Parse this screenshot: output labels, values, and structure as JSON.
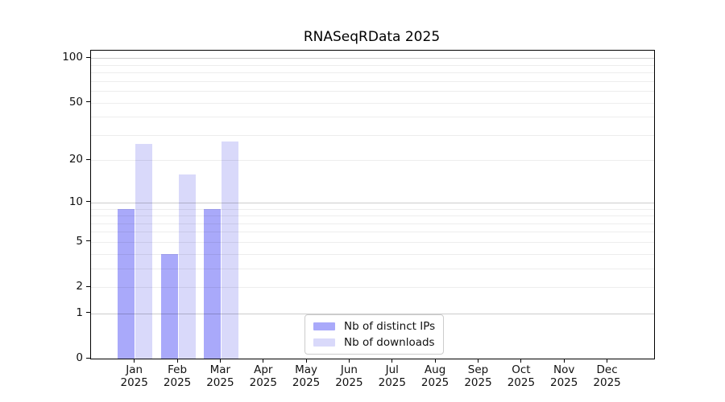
{
  "title": "RNASeqRData 2025",
  "chart_data": {
    "type": "bar",
    "title": "RNASeqRData 2025",
    "categories": [
      "Jan 2025",
      "Feb 2025",
      "Mar 2025",
      "Apr 2025",
      "May 2025",
      "Jun 2025",
      "Jul 2025",
      "Aug 2025",
      "Sep 2025",
      "Oct 2025",
      "Nov 2025",
      "Dec 2025"
    ],
    "series": [
      {
        "name": "Nb of distinct IPs",
        "key": "distinct-ips",
        "color": "#A9A9FA",
        "values": [
          9,
          4,
          9,
          0,
          0,
          0,
          0,
          0,
          0,
          0,
          0,
          0
        ]
      },
      {
        "name": "Nb of downloads",
        "key": "downloads",
        "color": "#D9D9FA",
        "values": [
          26,
          16,
          27,
          0,
          0,
          0,
          0,
          0,
          0,
          0,
          0,
          0
        ]
      }
    ],
    "xlabel": "",
    "ylabel": "",
    "yscale": "log1p",
    "ylim": [
      0,
      112
    ],
    "yticks": [
      0,
      1,
      2,
      5,
      10,
      20,
      50,
      100
    ],
    "gridlines_major": [
      1,
      10,
      100
    ],
    "gridlines_minor": [
      2,
      3,
      4,
      5,
      6,
      7,
      8,
      9,
      20,
      30,
      40,
      50,
      60,
      70,
      80,
      90
    ],
    "grid": "horizontal",
    "legend_position": "lower-center-inside"
  },
  "legend": {
    "items": [
      {
        "label": "Nb of distinct IPs",
        "color": "#A9A9FA"
      },
      {
        "label": "Nb of downloads",
        "color": "#D9D9FA"
      }
    ]
  },
  "colors": {
    "bar_dark": "#A9A9FA",
    "bar_light": "#D9D9FA",
    "grid_major": "#C7C7C7",
    "grid_minor": "#EDEDED",
    "spine": "#000000",
    "background": "#FFFFFF"
  }
}
